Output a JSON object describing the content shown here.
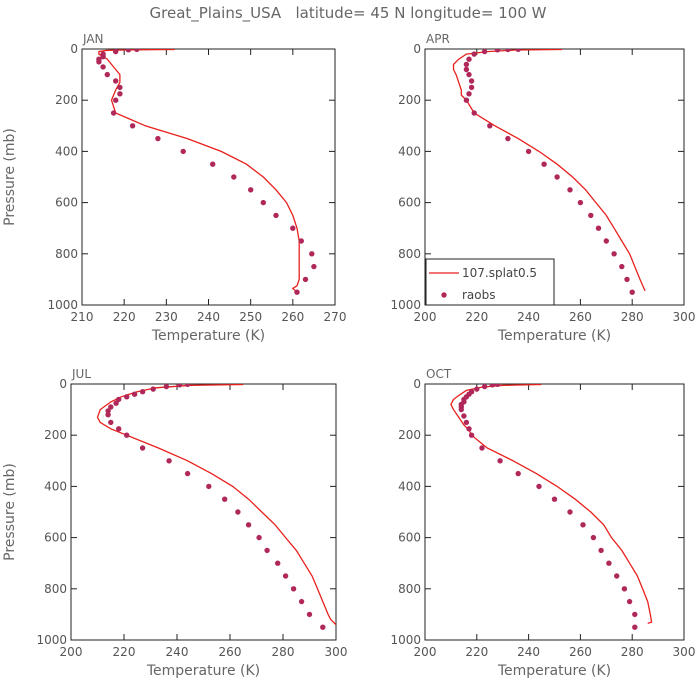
{
  "figure": {
    "title": "Great_Plains_USA   latitude= 45 N longitude= 100 W"
  },
  "colors": {
    "model_line": "#e8201c",
    "obs_marker": "#b0285a",
    "axis": "#222222",
    "text": "#666666"
  },
  "legend": {
    "placement": "inside lower-left of APR panel",
    "entries": [
      {
        "label": "107.splat0.5",
        "kind": "line"
      },
      {
        "label": "raobs",
        "kind": "marker"
      }
    ]
  },
  "chart_data": [
    {
      "type": "line",
      "panel": "JAN",
      "xlabel": "Temperature (K)",
      "ylabel": "Pressure (mb)",
      "xlim": [
        210,
        270
      ],
      "ylim": [
        0,
        1000
      ],
      "y_inverted": true,
      "xticks": [
        210,
        220,
        230,
        240,
        250,
        260,
        270
      ],
      "yticks": [
        0,
        200,
        400,
        600,
        800,
        1000
      ],
      "series": [
        {
          "kind": "line",
          "points": [
            [
              232,
              2
            ],
            [
              222,
              3
            ],
            [
              216,
              5
            ],
            [
              214,
              10
            ],
            [
              214,
              20
            ],
            [
              215,
              30
            ],
            [
              216,
              40
            ],
            [
              217,
              60
            ],
            [
              218,
              80
            ],
            [
              219,
              100
            ],
            [
              219,
              130
            ],
            [
              218,
              160
            ],
            [
              217,
              200
            ],
            [
              218,
              250
            ],
            [
              225,
              300
            ],
            [
              235,
              350
            ],
            [
              243,
              400
            ],
            [
              249,
              450
            ],
            [
              253,
              500
            ],
            [
              256,
              550
            ],
            [
              258.5,
              600
            ],
            [
              260,
              650
            ],
            [
              261,
              700
            ],
            [
              261.5,
              750
            ],
            [
              261.5,
              800
            ],
            [
              261.5,
              850
            ],
            [
              261.5,
              900
            ],
            [
              261,
              925
            ],
            [
              260,
              935
            ],
            [
              261,
              950
            ]
          ]
        },
        {
          "kind": "scatter",
          "points": [
            [
              223,
              1
            ],
            [
              221,
              3
            ],
            [
              218,
              10
            ],
            [
              215,
              20
            ],
            [
              215,
              30
            ],
            [
              214,
              40
            ],
            [
              214,
              50
            ],
            [
              215,
              70
            ],
            [
              216,
              100
            ],
            [
              218,
              125
            ],
            [
              219,
              150
            ],
            [
              219,
              175
            ],
            [
              218,
              200
            ],
            [
              217.5,
              250
            ],
            [
              222,
              300
            ],
            [
              228,
              350
            ],
            [
              234,
              400
            ],
            [
              241,
              450
            ],
            [
              246,
              500
            ],
            [
              250,
              550
            ],
            [
              253,
              600
            ],
            [
              256,
              650
            ],
            [
              260,
              700
            ],
            [
              262,
              750
            ],
            [
              264.5,
              800
            ],
            [
              265,
              850
            ],
            [
              263,
              900
            ],
            [
              261,
              950
            ]
          ]
        }
      ]
    },
    {
      "type": "line",
      "panel": "APR",
      "xlabel": "Temperature (K)",
      "ylabel": "",
      "xlim": [
        200,
        300
      ],
      "ylim": [
        0,
        1000
      ],
      "y_inverted": true,
      "xticks": [
        200,
        220,
        240,
        260,
        280,
        300
      ],
      "yticks": [
        0,
        200,
        400,
        600,
        800,
        1000
      ],
      "series": [
        {
          "kind": "line",
          "points": [
            [
              253,
              2
            ],
            [
              235,
              4
            ],
            [
              224,
              10
            ],
            [
              216,
              20
            ],
            [
              213,
              40
            ],
            [
              211,
              60
            ],
            [
              211,
              80
            ],
            [
              212,
              100
            ],
            [
              213,
              130
            ],
            [
              214,
              160
            ],
            [
              214,
              180
            ],
            [
              216,
              200
            ],
            [
              219,
              250
            ],
            [
              227,
              300
            ],
            [
              236,
              350
            ],
            [
              244,
              400
            ],
            [
              251,
              450
            ],
            [
              257,
              500
            ],
            [
              262,
              550
            ],
            [
              266,
              600
            ],
            [
              270,
              650
            ],
            [
              273,
              700
            ],
            [
              276,
              750
            ],
            [
              279,
              800
            ],
            [
              281,
              850
            ],
            [
              283,
              900
            ],
            [
              285,
              945
            ]
          ]
        },
        {
          "kind": "scatter",
          "points": [
            [
              236,
              1
            ],
            [
              232,
              2
            ],
            [
              228,
              3
            ],
            [
              223,
              10
            ],
            [
              219,
              20
            ],
            [
              217,
              40
            ],
            [
              216,
              60
            ],
            [
              216,
              80
            ],
            [
              217,
              100
            ],
            [
              218,
              125
            ],
            [
              218,
              150
            ],
            [
              217,
              175
            ],
            [
              216,
              200
            ],
            [
              219,
              250
            ],
            [
              225,
              300
            ],
            [
              232,
              350
            ],
            [
              240,
              400
            ],
            [
              246,
              450
            ],
            [
              251,
              500
            ],
            [
              256,
              550
            ],
            [
              260,
              600
            ],
            [
              264,
              650
            ],
            [
              267,
              700
            ],
            [
              270,
              750
            ],
            [
              273,
              800
            ],
            [
              276,
              850
            ],
            [
              278,
              900
            ],
            [
              280,
              950
            ]
          ]
        }
      ]
    },
    {
      "type": "line",
      "panel": "JUL",
      "xlabel": "Temperature (K)",
      "ylabel": "Pressure (mb)",
      "xlim": [
        200,
        300
      ],
      "ylim": [
        0,
        1000
      ],
      "y_inverted": true,
      "xticks": [
        200,
        220,
        240,
        260,
        280,
        300
      ],
      "yticks": [
        0,
        200,
        400,
        600,
        800,
        1000
      ],
      "series": [
        {
          "kind": "line",
          "points": [
            [
              265,
              2
            ],
            [
              245,
              5
            ],
            [
              232,
              15
            ],
            [
              225,
              30
            ],
            [
              219,
              50
            ],
            [
              215,
              70
            ],
            [
              211,
              100
            ],
            [
              210,
              130
            ],
            [
              211,
              150
            ],
            [
              215,
              175
            ],
            [
              221,
              200
            ],
            [
              233,
              250
            ],
            [
              244,
              300
            ],
            [
              253,
              350
            ],
            [
              261,
              400
            ],
            [
              267,
              450
            ],
            [
              272,
              500
            ],
            [
              277,
              550
            ],
            [
              281,
              600
            ],
            [
              285,
              650
            ],
            [
              288,
              700
            ],
            [
              291,
              750
            ],
            [
              293,
              800
            ],
            [
              295,
              850
            ],
            [
              297,
              900
            ],
            [
              298,
              920
            ],
            [
              300,
              940
            ]
          ]
        },
        {
          "kind": "scatter",
          "points": [
            [
              244,
              1
            ],
            [
              241,
              3
            ],
            [
              236,
              10
            ],
            [
              231,
              20
            ],
            [
              227,
              30
            ],
            [
              224,
              40
            ],
            [
              221,
              50
            ],
            [
              218,
              60
            ],
            [
              217,
              75
            ],
            [
              215,
              90
            ],
            [
              214,
              105
            ],
            [
              214,
              120
            ],
            [
              215,
              150
            ],
            [
              218,
              175
            ],
            [
              221,
              200
            ],
            [
              227,
              250
            ],
            [
              237,
              300
            ],
            [
              244,
              350
            ],
            [
              252,
              400
            ],
            [
              258,
              450
            ],
            [
              263,
              500
            ],
            [
              267,
              550
            ],
            [
              271,
              600
            ],
            [
              274,
              650
            ],
            [
              278,
              700
            ],
            [
              281,
              750
            ],
            [
              284,
              800
            ],
            [
              287,
              850
            ],
            [
              290,
              900
            ],
            [
              295,
              950
            ]
          ]
        }
      ]
    },
    {
      "type": "line",
      "panel": "OCT",
      "xlabel": "Temperature (K)",
      "ylabel": "",
      "xlim": [
        200,
        300
      ],
      "ylim": [
        0,
        1000
      ],
      "y_inverted": true,
      "xticks": [
        200,
        220,
        240,
        260,
        280,
        300
      ],
      "yticks": [
        0,
        200,
        400,
        600,
        800,
        1000
      ],
      "series": [
        {
          "kind": "line",
          "points": [
            [
              245,
              2
            ],
            [
              230,
              5
            ],
            [
              222,
              12
            ],
            [
              216,
              25
            ],
            [
              213,
              45
            ],
            [
              211,
              60
            ],
            [
              210,
              80
            ],
            [
              211,
              100
            ],
            [
              213,
              130
            ],
            [
              215,
              160
            ],
            [
              217,
              180
            ],
            [
              218,
              200
            ],
            [
              224,
              250
            ],
            [
              234,
              300
            ],
            [
              243,
              350
            ],
            [
              251,
              400
            ],
            [
              258,
              450
            ],
            [
              264,
              500
            ],
            [
              269,
              550
            ],
            [
              272,
              600
            ],
            [
              276,
              650
            ],
            [
              279,
              700
            ],
            [
              282,
              750
            ],
            [
              284,
              800
            ],
            [
              286,
              850
            ],
            [
              287,
              900
            ],
            [
              287.5,
              930
            ],
            [
              286,
              935
            ]
          ]
        },
        {
          "kind": "scatter",
          "points": [
            [
              228,
              1
            ],
            [
              226,
              3
            ],
            [
              223,
              10
            ],
            [
              220,
              20
            ],
            [
              218,
              30
            ],
            [
              217,
              40
            ],
            [
              216,
              50
            ],
            [
              215,
              60
            ],
            [
              215,
              70
            ],
            [
              214,
              80
            ],
            [
              214,
              90
            ],
            [
              214,
              100
            ],
            [
              215,
              125
            ],
            [
              216,
              150
            ],
            [
              217,
              175
            ],
            [
              218,
              200
            ],
            [
              222,
              250
            ],
            [
              229,
              300
            ],
            [
              236,
              350
            ],
            [
              244,
              400
            ],
            [
              250,
              450
            ],
            [
              256,
              500
            ],
            [
              261,
              550
            ],
            [
              265,
              600
            ],
            [
              268,
              650
            ],
            [
              271,
              700
            ],
            [
              274,
              750
            ],
            [
              277,
              800
            ],
            [
              279,
              850
            ],
            [
              281,
              900
            ],
            [
              281,
              950
            ]
          ]
        }
      ]
    }
  ]
}
